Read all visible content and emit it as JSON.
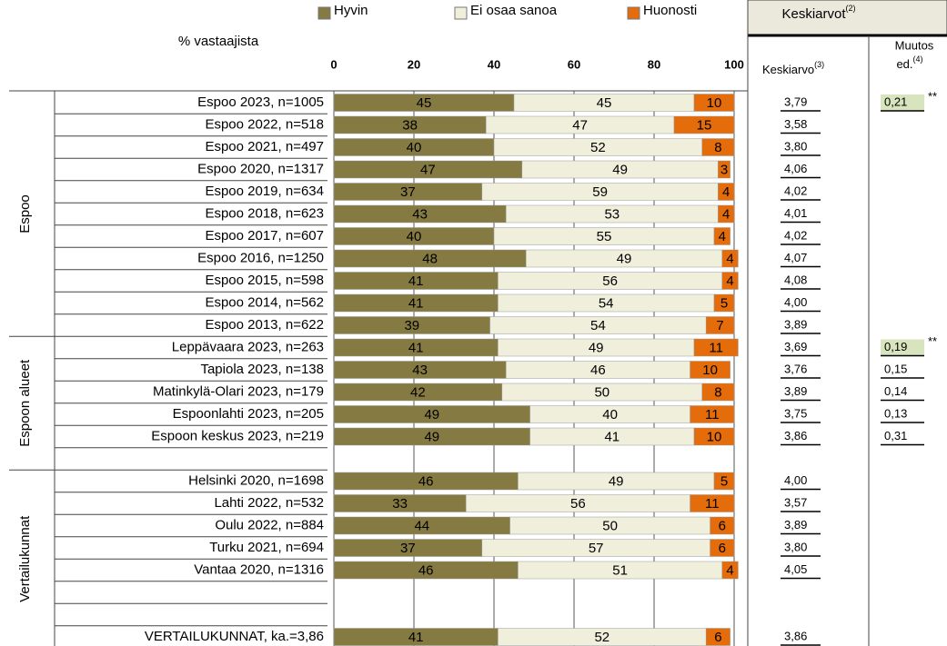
{
  "chart_data": {
    "type": "bar",
    "orientation": "horizontal",
    "stacked": true,
    "axis_title": "% vastaajista",
    "categories": [
      "Espoo 2023, n=1005",
      "Espoo 2022, n=518",
      "Espoo 2021, n=497",
      "Espoo 2020, n=1317",
      "Espoo 2019, n=634",
      "Espoo 2018, n=623",
      "Espoo 2017, n=607",
      "Espoo 2016, n=1250",
      "Espoo 2015, n=598",
      "Espoo 2014, n=562",
      "Espoo 2013, n=622",
      "Leppävaara 2023, n=263",
      "Tapiola 2023, n=138",
      "Matinkylä-Olari 2023, n=179",
      "Espoonlahti 2023, n=205",
      "Espoon keskus 2023, n=219",
      null,
      "Helsinki 2020, n=1698",
      "Lahti 2022, n=532",
      "Oulu 2022, n=884",
      "Turku 2021, n=694",
      "Vantaa 2020, n=1316",
      null,
      null,
      "VERTAILUKUNNAT, ka.=3,86"
    ],
    "series": [
      {
        "name": "Hyvin",
        "color": "#857a42",
        "label_color": "#ffffff",
        "values": [
          45,
          38,
          40,
          47,
          37,
          43,
          40,
          48,
          41,
          41,
          39,
          41,
          43,
          42,
          49,
          49,
          null,
          46,
          33,
          44,
          37,
          46,
          null,
          null,
          41
        ]
      },
      {
        "name": "Ei osaa sanoa",
        "color": "#efefdc",
        "label_color": "#000000",
        "values": [
          45,
          47,
          52,
          49,
          59,
          53,
          55,
          49,
          56,
          54,
          54,
          49,
          46,
          50,
          40,
          41,
          null,
          49,
          56,
          50,
          57,
          51,
          null,
          null,
          52
        ]
      },
      {
        "name": "Huonosti",
        "color": "#e46c0a",
        "label_color": "#ffffff",
        "values": [
          10,
          15,
          8,
          3,
          4,
          4,
          4,
          4,
          4,
          5,
          7,
          11,
          10,
          8,
          11,
          10,
          null,
          5,
          11,
          6,
          6,
          4,
          null,
          null,
          6
        ]
      }
    ],
    "xlim": [
      0,
      100
    ],
    "xticks": [
      0,
      20,
      40,
      60,
      80,
      100
    ],
    "grid": true,
    "groups": [
      "Espoo",
      "Espoon alueet",
      "Vertailukunnat"
    ],
    "averages_header": {
      "title": "Keskiarvot",
      "title_note": "(2)",
      "average": "Keskiarvo",
      "average_note": "(3)",
      "change_1": "Muutos",
      "change_2": "ed.",
      "change_note": "(4)"
    },
    "averages": [
      "3,79",
      "3,58",
      "3,80",
      "4,06",
      "4,02",
      "4,01",
      "4,02",
      "4,07",
      "4,08",
      "4,00",
      "3,89",
      "3,69",
      "3,76",
      "3,89",
      "3,75",
      "3,86",
      null,
      "4,00",
      "3,57",
      "3,89",
      "3,80",
      "4,05",
      null,
      null,
      "3,86"
    ],
    "changes": [
      "0,21",
      null,
      null,
      null,
      null,
      null,
      null,
      null,
      null,
      null,
      null,
      "0,19",
      "0,15",
      "0,14",
      "0,13",
      "0,31",
      null,
      null,
      null,
      null,
      null,
      null,
      null,
      null,
      null
    ],
    "significance": [
      "**",
      null,
      null,
      null,
      null,
      null,
      null,
      null,
      null,
      null,
      null,
      "**",
      null,
      null,
      null,
      null,
      null,
      null,
      null,
      null,
      null,
      null,
      null,
      null,
      null
    ]
  }
}
